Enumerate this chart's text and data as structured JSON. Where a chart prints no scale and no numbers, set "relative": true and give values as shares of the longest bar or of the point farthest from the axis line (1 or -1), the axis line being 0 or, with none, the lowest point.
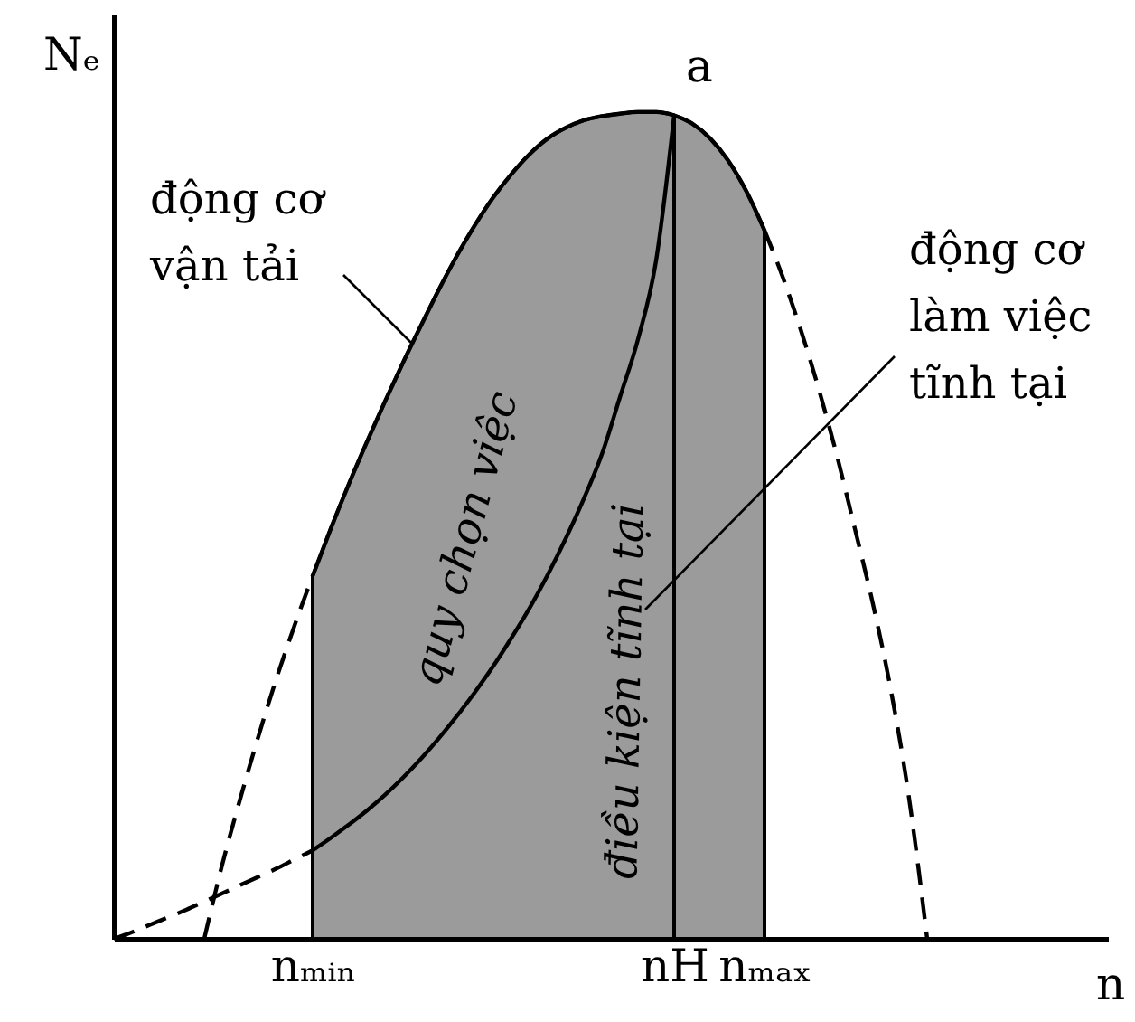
{
  "chart_data": {
    "type": "line",
    "relative": true,
    "xlabel": "n",
    "ylabel": "Nₑ",
    "tick_labels": "x",
    "categories": [
      null,
      null,
      null,
      null,
      null,
      null,
      null,
      null,
      null,
      null,
      null,
      "nₘᵢₙ",
      null,
      null,
      null,
      null,
      null,
      null,
      null,
      null,
      null,
      null,
      null,
      null,
      null,
      null,
      null,
      null,
      null,
      null,
      null,
      "nH",
      null,
      null,
      null,
      null,
      "nₘₐₓ",
      null,
      null,
      null,
      null,
      null,
      null,
      null,
      null,
      null,
      null,
      null,
      null,
      null,
      null,
      null,
      null,
      null,
      null,
      null
    ],
    "series": [
      {
        "type": "area",
        "color": "#9b9b9b",
        "values": [
          null,
          null,
          null,
          null,
          null,
          null,
          null,
          null,
          null,
          null,
          null,
          0.439,
          0.496,
          0.55,
          0.601,
          0.65,
          0.697,
          0.742,
          0.786,
          0.827,
          0.864,
          0.897,
          0.925,
          0.949,
          0.968,
          0.981,
          0.99,
          0.995,
          0.998,
          1,
          1,
          0.996,
          null,
          null,
          null,
          null,
          null,
          null,
          null,
          null,
          null,
          null,
          null,
          null,
          null,
          null,
          null,
          null,
          null,
          null,
          null,
          null,
          null,
          null,
          null,
          null
        ]
      },
      {
        "type": "area",
        "color": "#9b9b9b",
        "values": [
          null,
          null,
          null,
          null,
          null,
          null,
          null,
          null,
          null,
          null,
          null,
          null,
          null,
          null,
          null,
          null,
          null,
          null,
          null,
          null,
          null,
          null,
          null,
          null,
          null,
          null,
          null,
          null,
          null,
          null,
          null,
          0.996,
          0.986,
          0.968,
          0.941,
          0.904,
          0.857,
          null,
          null,
          null,
          null,
          null,
          null,
          null,
          null,
          null,
          null,
          null,
          null,
          null,
          null,
          null,
          null,
          null,
          null,
          null
        ]
      },
      {
        "type": "line",
        "color": "#000000",
        "line_style": "dashed",
        "values": [
          null,
          null,
          null,
          null,
          null,
          0,
          0.09,
          0.17,
          0.245,
          0.315,
          0.379,
          0.439,
          null,
          null,
          null,
          null,
          null,
          null,
          null,
          null,
          null,
          null,
          null,
          null,
          null,
          null,
          null,
          null,
          null,
          null,
          null,
          null,
          null,
          null,
          null,
          null,
          null,
          null,
          null,
          null,
          null,
          null,
          null,
          null,
          null,
          null,
          null,
          null,
          null,
          null,
          null,
          null,
          null,
          null,
          null,
          null
        ]
      },
      {
        "type": "line",
        "color": "#000000",
        "line_style": "solid",
        "values": [
          null,
          null,
          null,
          null,
          null,
          null,
          null,
          null,
          null,
          null,
          null,
          0.439,
          0.496,
          0.55,
          0.601,
          0.65,
          0.697,
          0.742,
          0.786,
          0.827,
          0.864,
          0.897,
          0.925,
          0.949,
          0.968,
          0.981,
          0.99,
          0.995,
          0.998,
          1,
          1,
          0.996,
          0.986,
          0.968,
          0.941,
          0.904,
          0.857,
          null,
          null,
          null,
          null,
          null,
          null,
          null,
          null,
          null,
          null,
          null,
          null,
          null,
          null,
          null,
          null,
          null,
          null,
          null
        ]
      },
      {
        "type": "line",
        "color": "#000000",
        "line_style": "dashed",
        "values": [
          null,
          null,
          null,
          null,
          null,
          null,
          null,
          null,
          null,
          null,
          null,
          null,
          null,
          null,
          null,
          null,
          null,
          null,
          null,
          null,
          null,
          null,
          null,
          null,
          null,
          null,
          null,
          null,
          null,
          null,
          null,
          null,
          null,
          null,
          null,
          null,
          0.857,
          0.801,
          0.737,
          0.665,
          0.585,
          0.496,
          0.405,
          0.3,
          0.17,
          0,
          null,
          null,
          null,
          null,
          null,
          null,
          null,
          null,
          null,
          null
        ]
      },
      {
        "type": "line",
        "color": "#000000",
        "line_style": "dashed",
        "values": [
          0,
          0.008,
          0.017,
          0.026,
          0.035,
          0.045,
          0.055,
          0.065,
          0.075,
          0.085,
          0.096,
          0.107,
          null,
          null,
          null,
          null,
          null,
          null,
          null,
          null,
          null,
          null,
          null,
          null,
          null,
          null,
          null,
          null,
          null,
          null,
          null,
          null,
          null,
          null,
          null,
          null,
          null,
          null,
          null,
          null,
          null,
          null,
          null,
          null,
          null,
          null,
          null,
          null,
          null,
          null,
          null,
          null,
          null,
          null,
          null,
          null
        ]
      },
      {
        "type": "line",
        "color": "#000000",
        "line_style": "solid",
        "values": [
          null,
          null,
          null,
          null,
          null,
          null,
          null,
          null,
          null,
          null,
          null,
          0.107,
          0.122,
          0.138,
          0.155,
          0.174,
          0.195,
          0.218,
          0.243,
          0.27,
          0.299,
          0.33,
          0.364,
          0.4,
          0.44,
          0.484,
          0.532,
          0.586,
          0.655,
          0.725,
          0.82,
          0.996,
          null,
          null,
          null,
          null,
          null,
          null,
          null,
          null,
          null,
          null,
          null,
          null,
          null,
          null,
          null,
          null,
          null,
          null,
          null,
          null,
          null,
          null,
          null,
          null
        ]
      }
    ],
    "annotations": [
      {
        "text": "a",
        "x": "nH",
        "y": 0.996
      },
      "động cơ vận tải",
      "động cơ làm việc tĩnh tại",
      "quy chọn việc",
      "điều kiện tĩnh tại"
    ]
  }
}
